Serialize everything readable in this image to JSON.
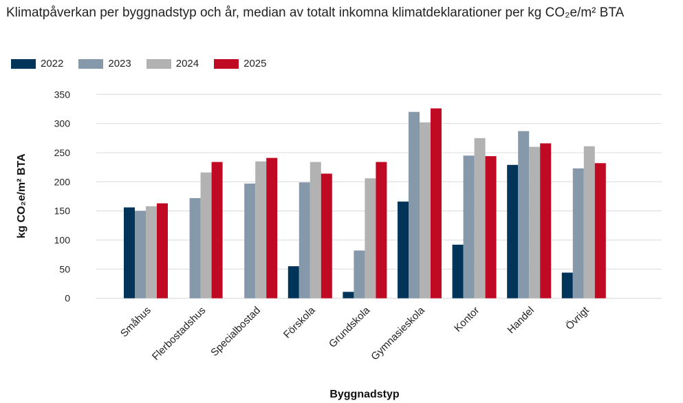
{
  "chart_data": {
    "type": "bar",
    "title": "Klimatpåverkan per byggnadstyp och år, median av totalt inkomna klimatdeklarationer per kg CO₂e/m² BTA",
    "xlabel": "Byggnadstyp",
    "ylabel": "kg CO₂e/m² BTA",
    "ylim": [
      0,
      350
    ],
    "yticks": [
      0,
      50,
      100,
      150,
      200,
      250,
      300,
      350
    ],
    "grid": true,
    "legend_position": "top-left",
    "categories": [
      "Småhus",
      "Flerbostadshus",
      "Specialbostad",
      "Förskola",
      "Grundskola",
      "Gymnasieskola",
      "Kontor",
      "Handel",
      "Övrigt"
    ],
    "series": [
      {
        "name": "2022",
        "color": "#003459",
        "values": [
          156,
          null,
          null,
          55,
          11,
          166,
          92,
          229,
          44
        ]
      },
      {
        "name": "2023",
        "color": "#8599AB",
        "values": [
          150,
          172,
          197,
          199,
          82,
          320,
          245,
          287,
          223
        ]
      },
      {
        "name": "2024",
        "color": "#B2B2B2",
        "values": [
          158,
          216,
          235,
          234,
          206,
          302,
          275,
          260,
          261
        ]
      },
      {
        "name": "2025",
        "color": "#C00A23",
        "values": [
          163,
          234,
          241,
          214,
          234,
          326,
          244,
          266,
          232
        ]
      }
    ]
  }
}
